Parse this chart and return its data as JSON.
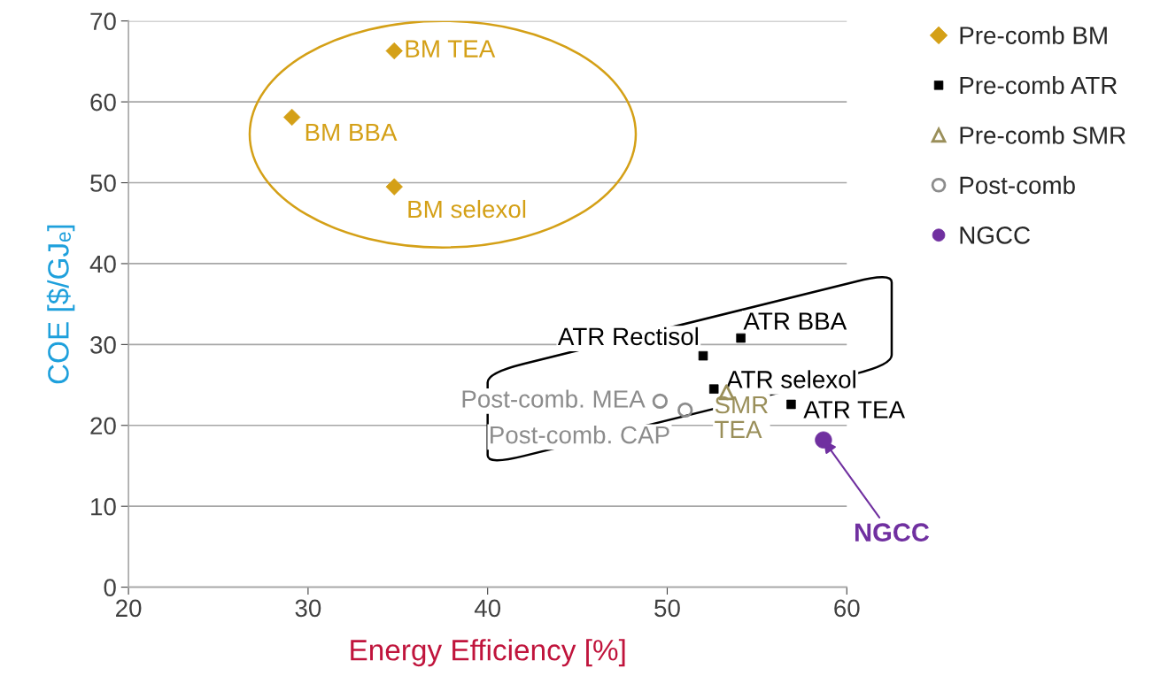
{
  "chart_data": {
    "type": "scatter",
    "xlabel": "Energy Efficiency [%]",
    "ylabel": "COE [$/GJₑ]",
    "xlim": [
      20,
      60
    ],
    "xticks": [
      20,
      30,
      40,
      50,
      60
    ],
    "ylim": [
      0,
      70
    ],
    "yticks": [
      0,
      10,
      20,
      30,
      40,
      50,
      60,
      70
    ],
    "grid": "y",
    "legend": "top right",
    "series": [
      {
        "name": "Pre-comb BM",
        "color": "#d4a017",
        "marker": "diamond",
        "x": [
          34.8,
          29.1,
          34.8
        ],
        "values": [
          66.3,
          58.1,
          49.5
        ],
        "value_labels": [
          "BM TEA",
          "BM BBA",
          "BM selexol"
        ]
      },
      {
        "name": "Pre-comb ATR",
        "color": "#000000",
        "marker": "square",
        "x": [
          52.0,
          54.1,
          52.6,
          56.9
        ],
        "values": [
          28.6,
          30.8,
          24.5,
          22.6
        ],
        "value_labels": [
          "ATR Rectisol",
          "ATR BBA",
          "ATR selexol",
          "ATR TEA"
        ]
      },
      {
        "name": "Pre-comb SMR",
        "color": "#9a8f5a",
        "marker": "triangle",
        "x": [
          53.3
        ],
        "values": [
          24.1
        ],
        "value_labels": [
          "SMR\nTEA"
        ]
      },
      {
        "name": "Post-comb",
        "color": "#8c8c8c",
        "marker": "circle",
        "x": [
          49.6,
          51.0
        ],
        "values": [
          23.0,
          21.9
        ],
        "value_labels": [
          "Post-comb. MEA",
          "Post-comb. CAP"
        ]
      },
      {
        "name": "NGCC",
        "color": "#7030a0",
        "marker": "circle",
        "x": [
          58.7
        ],
        "values": [
          18.2
        ]
      }
    ],
    "annotations": [
      {
        "text": "NGCC",
        "x": 58.7,
        "y": 18.2
      }
    ]
  }
}
